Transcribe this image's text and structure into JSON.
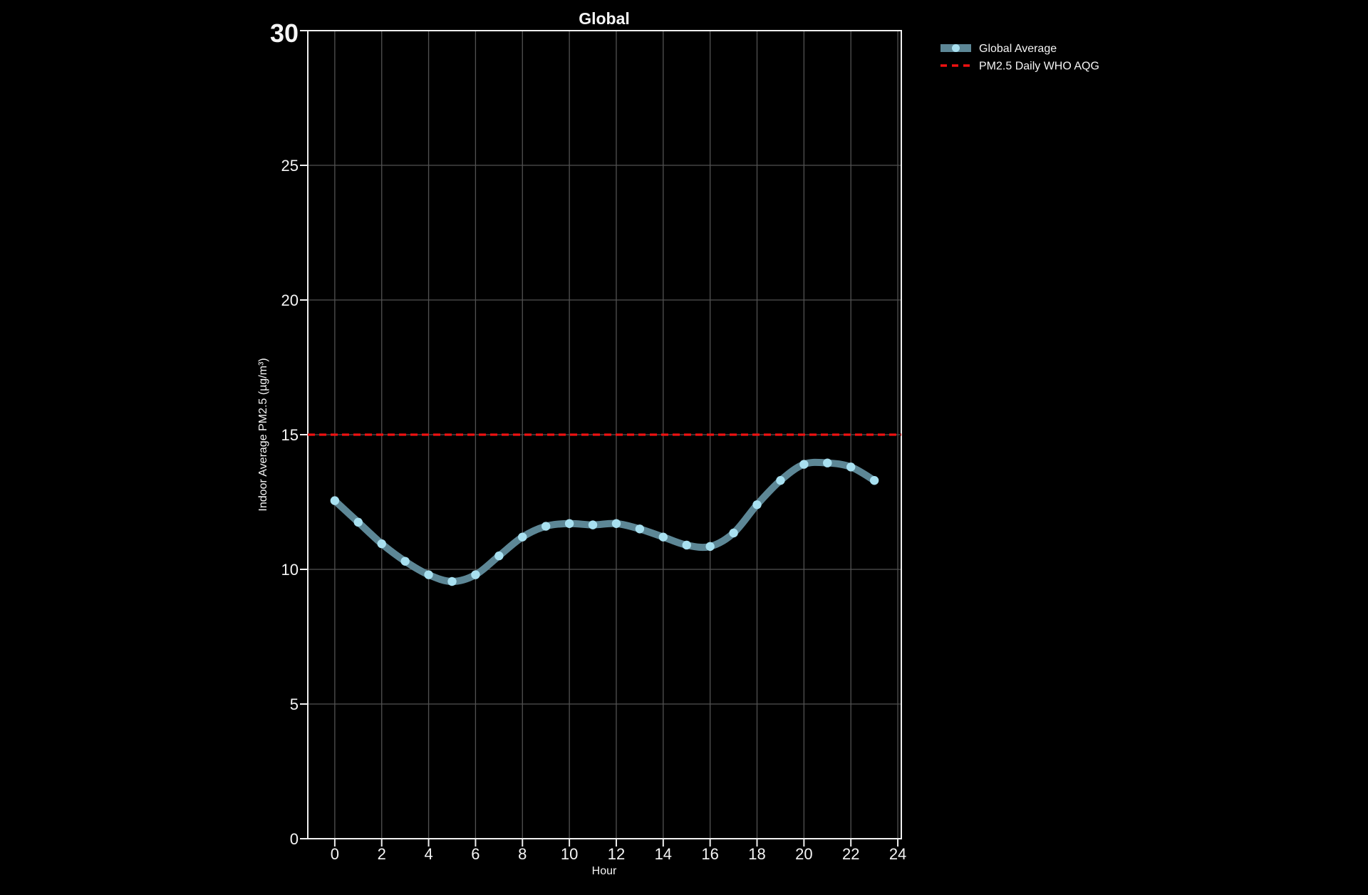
{
  "title": "Global",
  "chart_data": {
    "type": "line",
    "title": "Global",
    "xlabel": "Hour",
    "ylabel": "Indoor Average PM2.5 (µg/m³)",
    "x": [
      0,
      1,
      2,
      3,
      4,
      5,
      6,
      7,
      8,
      9,
      10,
      11,
      12,
      13,
      14,
      15,
      16,
      17,
      18,
      19,
      20,
      21,
      22,
      23
    ],
    "series": [
      {
        "name": "Global Average",
        "values": [
          12.55,
          11.75,
          10.95,
          10.3,
          9.8,
          9.55,
          9.8,
          10.5,
          11.2,
          11.6,
          11.7,
          11.65,
          11.7,
          11.5,
          11.2,
          10.9,
          10.85,
          11.35,
          12.4,
          13.3,
          13.9,
          13.95,
          13.8,
          13.3
        ]
      }
    ],
    "reference_lines": [
      {
        "name": "PM2.5 Daily WHO AQG",
        "value": 15,
        "style": "dashed"
      }
    ],
    "xlim": [
      -1.15,
      24.15
    ],
    "ylim": [
      0,
      30
    ],
    "xticks": [
      0,
      2,
      4,
      6,
      8,
      10,
      12,
      14,
      16,
      18,
      20,
      22,
      24
    ],
    "yticks": [
      0,
      5,
      10,
      15,
      20,
      25,
      30
    ],
    "ytick_highlight": {
      "value": 30,
      "label": "30"
    },
    "grid": true,
    "legend_position": "top-right-outside",
    "colors": {
      "background": "#000000",
      "text": "#f5f5f5",
      "grid": "#525252",
      "frame": "#f0f0f0",
      "series_line": "#5d8796",
      "series_dot": "#a8e0f0",
      "who_line": "#ee1111",
      "ytick_highlight": "#2ca02c"
    }
  }
}
